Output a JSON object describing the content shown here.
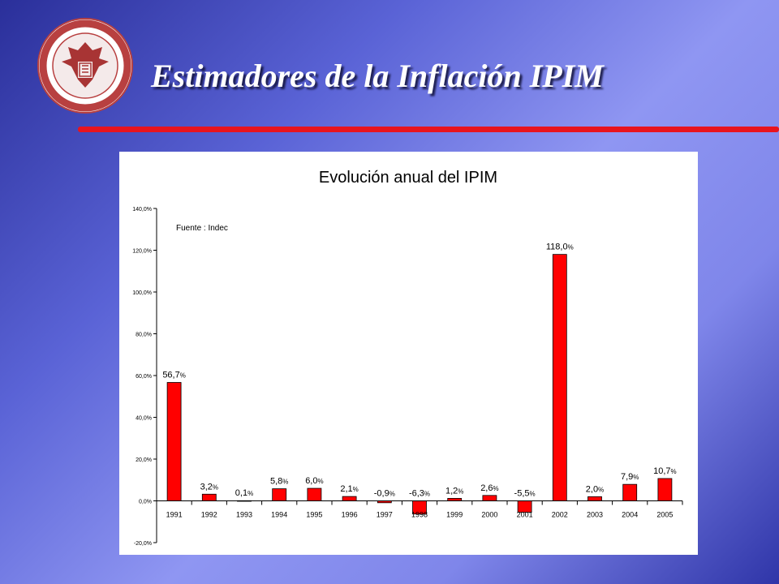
{
  "slide": {
    "title": "Estimadores de la Inflación IPIM",
    "accent_color": "#e8141e",
    "logo_icon": "university-seal-icon"
  },
  "chart_data": {
    "type": "bar",
    "title": "Evolución anual del IPIM",
    "annotation": "Fuente : Indec",
    "categories": [
      "1991",
      "1992",
      "1993",
      "1994",
      "1995",
      "1996",
      "1997",
      "1998",
      "1999",
      "2000",
      "2001",
      "2002",
      "2003",
      "2004",
      "2005"
    ],
    "values": [
      56.7,
      3.2,
      0.1,
      5.8,
      6.0,
      2.1,
      -0.9,
      -6.3,
      1.2,
      2.6,
      -5.5,
      118.0,
      2.0,
      7.9,
      10.7
    ],
    "data_labels": [
      {
        "num": "56,7",
        "pct": "%"
      },
      {
        "num": "3,2",
        "pct": "%"
      },
      {
        "num": "0,1",
        "pct": "%"
      },
      {
        "num": "5,8",
        "pct": "%"
      },
      {
        "num": "6,0",
        "pct": "%"
      },
      {
        "num": "2,1",
        "pct": "%"
      },
      {
        "num": "-0,9",
        "pct": "%"
      },
      {
        "num": "-6,3",
        "pct": "%"
      },
      {
        "num": "1,2",
        "pct": "%"
      },
      {
        "num": "2,6",
        "pct": "%"
      },
      {
        "num": "-5,5",
        "pct": "%"
      },
      {
        "num": "118,0",
        "pct": "%"
      },
      {
        "num": "2,0",
        "pct": "%"
      },
      {
        "num": "7,9",
        "pct": "%"
      },
      {
        "num": "10,7",
        "pct": "%"
      }
    ],
    "y_ticks": [
      -20,
      0,
      20,
      40,
      60,
      80,
      100,
      120,
      140
    ],
    "y_tick_labels": [
      "-20,0%",
      "0,0%",
      "20,0%",
      "40,0%",
      "60,0%",
      "80,0%",
      "100,0%",
      "120,0%",
      "140,0%"
    ],
    "ylim": [
      -20,
      140
    ],
    "xlabel": "",
    "ylabel": "",
    "grid": false,
    "legend": "none",
    "bar_color": "#ff0000"
  }
}
